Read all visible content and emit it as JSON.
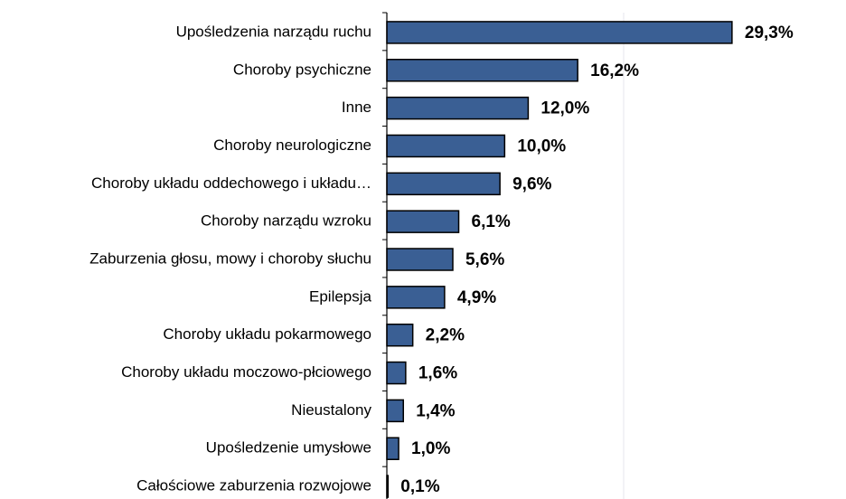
{
  "chart_data": {
    "type": "barh",
    "categories": [
      "Upośledzenia narządu ruchu",
      "Choroby psychiczne",
      "Inne",
      "Choroby neurologiczne",
      "Choroby układu oddechowego i układu…",
      "Choroby narządu wzroku",
      "Zaburzenia głosu, mowy i choroby słuchu",
      "Epilepsja",
      "Choroby układu pokarmowego",
      "Choroby układu moczowo-płciowego",
      "Nieustalony",
      "Upośledzenie umysłowe",
      "Całościowe zaburzenia rozwojowe"
    ],
    "values": [
      29.3,
      16.2,
      12.0,
      10.0,
      9.6,
      6.1,
      5.6,
      4.9,
      2.2,
      1.6,
      1.4,
      1.0,
      0.1
    ],
    "value_labels": [
      "29,3%",
      "16,2%",
      "12,0%",
      "10,0%",
      "9,6%",
      "6,1%",
      "5,6%",
      "4,9%",
      "2,2%",
      "1,6%",
      "1,4%",
      "1,0%",
      "0,1%"
    ],
    "color": "#3a5f94",
    "xlim": [
      0,
      30
    ]
  }
}
